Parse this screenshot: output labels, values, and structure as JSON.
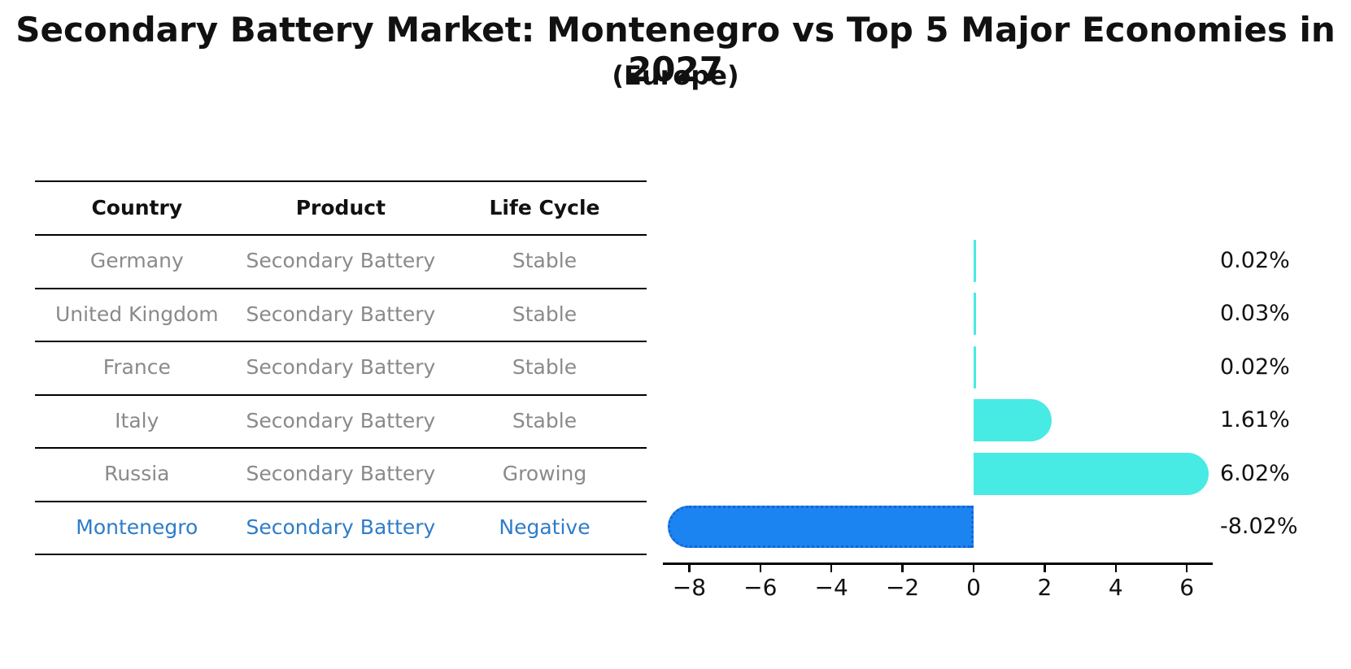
{
  "title": "Secondary Battery Market: Montenegro vs Top 5 Major Economies in 2027",
  "subtitle": "(Europe)",
  "table": {
    "headers": [
      "Country",
      "Product",
      "Life Cycle"
    ],
    "rows": [
      {
        "country": "Germany",
        "product": "Secondary Battery",
        "life_cycle": "Stable",
        "highlighted": false
      },
      {
        "country": "United Kingdom",
        "product": "Secondary Battery",
        "life_cycle": "Stable",
        "highlighted": false
      },
      {
        "country": "France",
        "product": "Secondary Battery",
        "life_cycle": "Stable",
        "highlighted": false
      },
      {
        "country": "Italy",
        "product": "Secondary Battery",
        "life_cycle": "Stable",
        "highlighted": false
      },
      {
        "country": "Russia",
        "product": "Secondary Battery",
        "life_cycle": "Growing",
        "highlighted": false
      },
      {
        "country": "Montenegro",
        "product": "Secondary Battery",
        "life_cycle": "Negative",
        "highlighted": true
      }
    ]
  },
  "chart_data": {
    "type": "bar",
    "orientation": "horizontal",
    "title": "Secondary Battery Market: Montenegro vs Top 5 Major Economies in 2027 (Europe)",
    "categories": [
      "Germany",
      "United Kingdom",
      "France",
      "Italy",
      "Russia",
      "Montenegro"
    ],
    "values": [
      0.02,
      0.03,
      0.02,
      1.61,
      6.02,
      -8.02
    ],
    "value_labels": [
      "0.02%",
      "0.03%",
      "0.02%",
      "1.61%",
      "6.02%",
      "-8.02%"
    ],
    "unit": "%",
    "x_ticks": [
      -8,
      -6,
      -4,
      -2,
      0,
      2,
      4,
      6
    ],
    "x_tick_labels": [
      "−8",
      "−6",
      "−4",
      "−2",
      "0",
      "2",
      "4",
      "6"
    ],
    "xlim": [
      -8.75,
      6.75
    ],
    "grid": false,
    "legend": null
  },
  "colors": {
    "positive_bar": "#48EAE4",
    "negative_bar": "#1C84F0",
    "negative_bar_edge": "#1565D8",
    "highlight_text": "#2E7CC9",
    "muted_text": "#8a8a8a",
    "text": "#111111"
  }
}
